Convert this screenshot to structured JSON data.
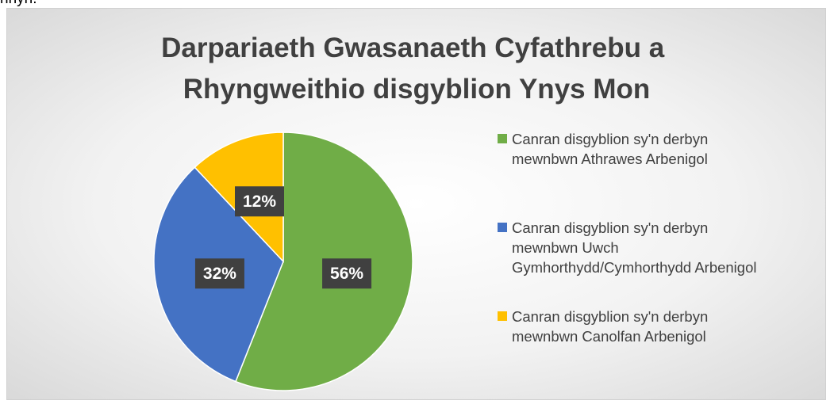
{
  "page_text": "nnyn.",
  "chart_data": {
    "type": "pie",
    "title": "Darpariaeth Gwasanaeth Cyfathrebu a Rhyngweithio disgyblion Ynys Mon",
    "series": [
      {
        "name": "Canran disgyblion sy'n derbyn mewnbwn Athrawes Arbenigol",
        "color": "#70ad47"
      },
      {
        "name": "Canran disgyblion sy'n derbyn mewnbwn Uwch Gymhorthydd/Cymhorthydd Arbenigol",
        "color": "#4472c4"
      },
      {
        "name": "Canran disgyblion sy'n derbyn mewnbwn Canolfan Arbenigol",
        "color": "#ffc000"
      }
    ],
    "values": [
      56,
      32,
      12
    ],
    "value_labels": [
      "56%",
      "32%",
      "12%"
    ],
    "legend": "right"
  }
}
